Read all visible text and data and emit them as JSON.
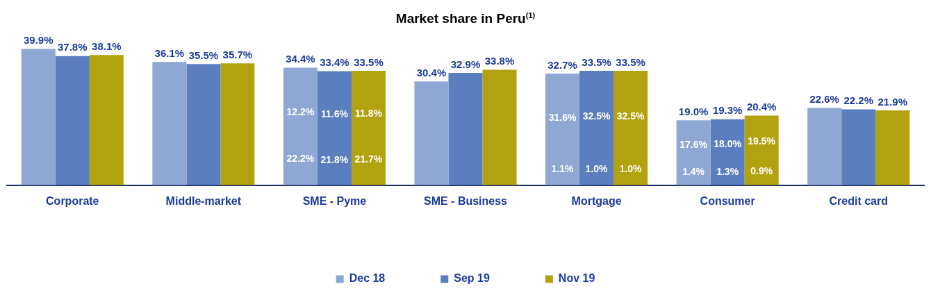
{
  "chart_data": {
    "type": "bar",
    "title": "Market share in Peru$^{(1)}$",
    "categories": [
      "Corporate",
      "Middle-market",
      "SME - Pyme",
      "SME - Business",
      "Mortgage",
      "Consumer",
      "Credit card"
    ],
    "series": [
      {
        "name": "Dec 18",
        "color": "#8ea8d3",
        "values": [
          39.9,
          36.1,
          34.4,
          30.4,
          32.7,
          19.0,
          22.6
        ],
        "value_labels": [
          "39.9%",
          "36.1%",
          "34.4%",
          "30.4%",
          "32.7%",
          "19.0%",
          "22.6%"
        ]
      },
      {
        "name": "Sep 19",
        "color": "#5b7fbe",
        "values": [
          37.8,
          35.5,
          33.4,
          32.9,
          33.5,
          19.3,
          22.2
        ],
        "value_labels": [
          "37.8%",
          "35.5%",
          "33.4%",
          "32.9%",
          "33.5%",
          "19.3%",
          "22.2%"
        ]
      },
      {
        "name": "Nov 19",
        "color": "#b3a20f",
        "values": [
          38.1,
          35.7,
          33.5,
          33.8,
          33.5,
          20.4,
          21.9
        ],
        "value_labels": [
          "38.1%",
          "35.7%",
          "33.5%",
          "33.8%",
          "33.5%",
          "20.4%",
          "21.9%"
        ]
      }
    ],
    "annotations": [
      "12.2%",
      "22.2%",
      "11.6%",
      "21.8%",
      "11.8%",
      "21.7%",
      "31.6%",
      "1.1%",
      "32.5%",
      "1.0%",
      "32.5%",
      "1.0%",
      "17.6%",
      "1.4%",
      "18.0%",
      "1.3%",
      "19.5%",
      "0.9%"
    ],
    "legend": "bottom",
    "grid": false
  }
}
